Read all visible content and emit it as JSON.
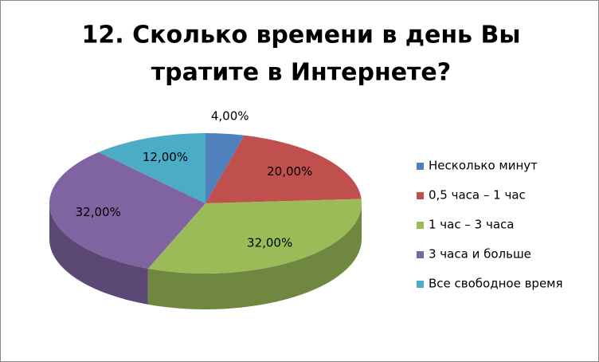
{
  "chart_data": {
    "type": "pie3d",
    "title": [
      "12. Сколько времени в день Вы",
      "тратите в Интернете?"
    ],
    "categories": [
      "Несколько минут",
      "0,5 часа – 1 час",
      "1 час – 3 часа",
      "3 часа и больше",
      "Все свободное время"
    ],
    "values": [
      4,
      20,
      32,
      32,
      12
    ],
    "value_labels": [
      "4,00%",
      "20,00%",
      "32,00%",
      "32,00%",
      "12,00%"
    ],
    "colors": [
      "#4f81bd",
      "#c0504d",
      "#9bbb59",
      "#8064a2",
      "#4bacc6"
    ],
    "legend": "right"
  }
}
